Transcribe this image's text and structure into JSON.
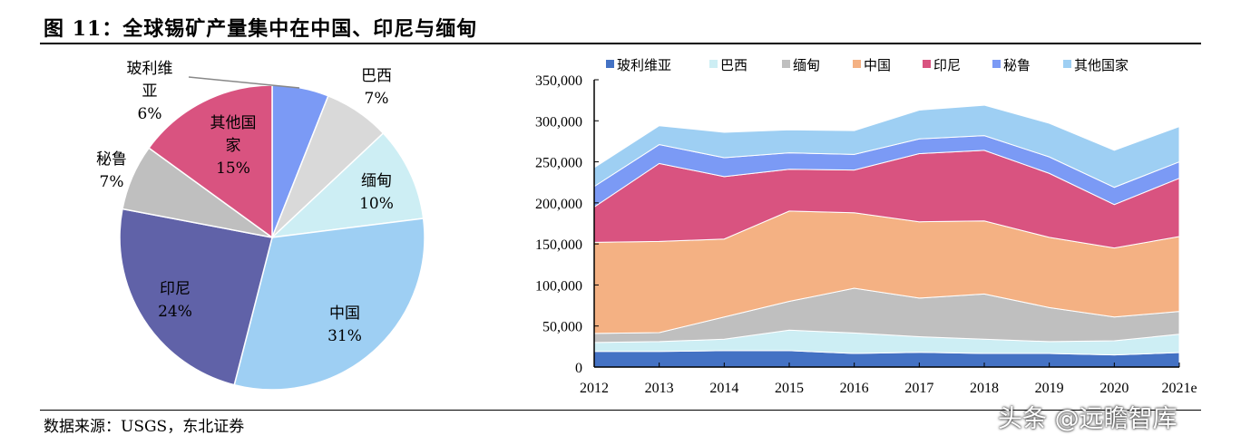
{
  "title": "图 11：全球锡矿产量集中在中国、印尼与缅甸",
  "source": "数据来源：USGS，东北证券",
  "watermark": "头条 @远瞻智库",
  "chart_data": [
    {
      "type": "pie",
      "slices": [
        {
          "label": "玻利维亚",
          "label_l1": "玻利维",
          "label_l2": "亚",
          "value": 6,
          "pct": "6%",
          "color": "#7b9af5"
        },
        {
          "label": "巴西",
          "label_l1": "巴西",
          "value": 7,
          "pct": "7%",
          "color": "#d9d9d9"
        },
        {
          "label": "缅甸",
          "label_l1": "缅甸",
          "value": 10,
          "pct": "10%",
          "color": "#cdeef4"
        },
        {
          "label": "中国",
          "label_l1": "中国",
          "value": 31,
          "pct": "31%",
          "color": "#9ecff3"
        },
        {
          "label": "印尼",
          "label_l1": "印尼",
          "value": 24,
          "pct": "24%",
          "color": "#6062a8"
        },
        {
          "label": "秘鲁",
          "label_l1": "秘鲁",
          "value": 7,
          "pct": "7%",
          "color": "#bfbfbf"
        },
        {
          "label": "其他国家",
          "label_l1": "其他国",
          "label_l2": "家",
          "value": 15,
          "pct": "15%",
          "color": "#d95380"
        }
      ]
    },
    {
      "type": "area",
      "stacked": true,
      "categories": [
        "2012",
        "2013",
        "2014",
        "2015",
        "2016",
        "2017",
        "2018",
        "2019",
        "2020",
        "2021e"
      ],
      "ylim": [
        0,
        350000
      ],
      "yticks": [
        "0",
        "50,000",
        "100,000",
        "150,000",
        "200,000",
        "250,000",
        "300,000",
        "350,000"
      ],
      "legend_position": "top",
      "series": [
        {
          "name": "玻利维亚",
          "color": "#4472c4",
          "values": [
            19000,
            19000,
            20000,
            20000,
            16500,
            18000,
            16500,
            16500,
            14700,
            17700
          ]
        },
        {
          "name": "巴西",
          "color": "#cdeef4",
          "values": [
            11000,
            12000,
            14000,
            25000,
            25000,
            19000,
            17500,
            14500,
            17300,
            22300
          ]
        },
        {
          "name": "缅甸",
          "color": "#bfbfbf",
          "values": [
            11000,
            11000,
            27000,
            35000,
            54500,
            47000,
            55000,
            41500,
            29000,
            27700
          ]
        },
        {
          "name": "中国",
          "color": "#f4b183",
          "values": [
            111000,
            111000,
            95000,
            110000,
            92000,
            93000,
            89000,
            85500,
            84000,
            91300
          ]
        },
        {
          "name": "印尼",
          "color": "#d95380",
          "values": [
            43000,
            95000,
            76000,
            51000,
            52000,
            83000,
            86000,
            78000,
            53000,
            71000
          ]
        },
        {
          "name": "秘鲁",
          "color": "#7b9af5",
          "values": [
            25000,
            23000,
            23000,
            20000,
            19000,
            18000,
            18000,
            20000,
            21000,
            20000
          ]
        },
        {
          "name": "其他国家",
          "color": "#9ecff3",
          "values": [
            23000,
            23000,
            31000,
            28000,
            29000,
            35000,
            37000,
            41000,
            45000,
            43000
          ]
        }
      ]
    }
  ]
}
